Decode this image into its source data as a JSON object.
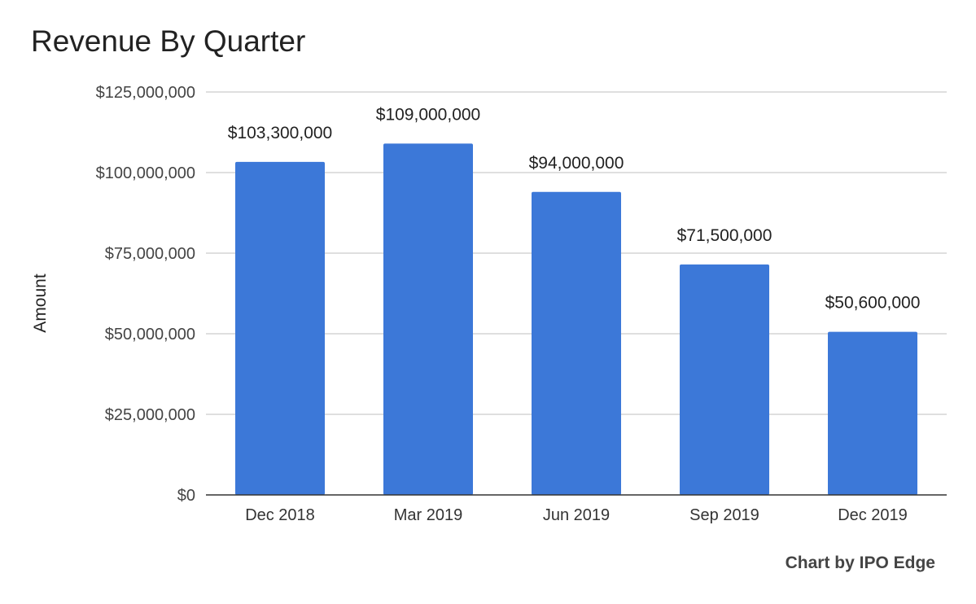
{
  "chart_data": {
    "type": "bar",
    "title": "Revenue By Quarter",
    "xlabel": "",
    "ylabel": "Amount",
    "categories": [
      "Dec 2018",
      "Mar 2019",
      "Jun 2019",
      "Sep 2019",
      "Dec 2019"
    ],
    "values": [
      103300000,
      109000000,
      94000000,
      71500000,
      50600000
    ],
    "data_labels": [
      "$103,300,000",
      "$109,000,000",
      "$94,000,000",
      "$71,500,000",
      "$50,600,000"
    ],
    "ylim": [
      0,
      125000000
    ],
    "yticks": [
      0,
      25000000,
      50000000,
      75000000,
      100000000,
      125000000
    ],
    "ytick_labels": [
      "$0",
      "$25,000,000",
      "$50,000,000",
      "$75,000,000",
      "$100,000,000",
      "$125,000,000"
    ],
    "grid": true,
    "legend": "none",
    "bar_color": "#3c78d8",
    "grid_color": "#cccccc",
    "axis_color": "#333333"
  },
  "footer": {
    "credit": "Chart by IPO Edge"
  }
}
